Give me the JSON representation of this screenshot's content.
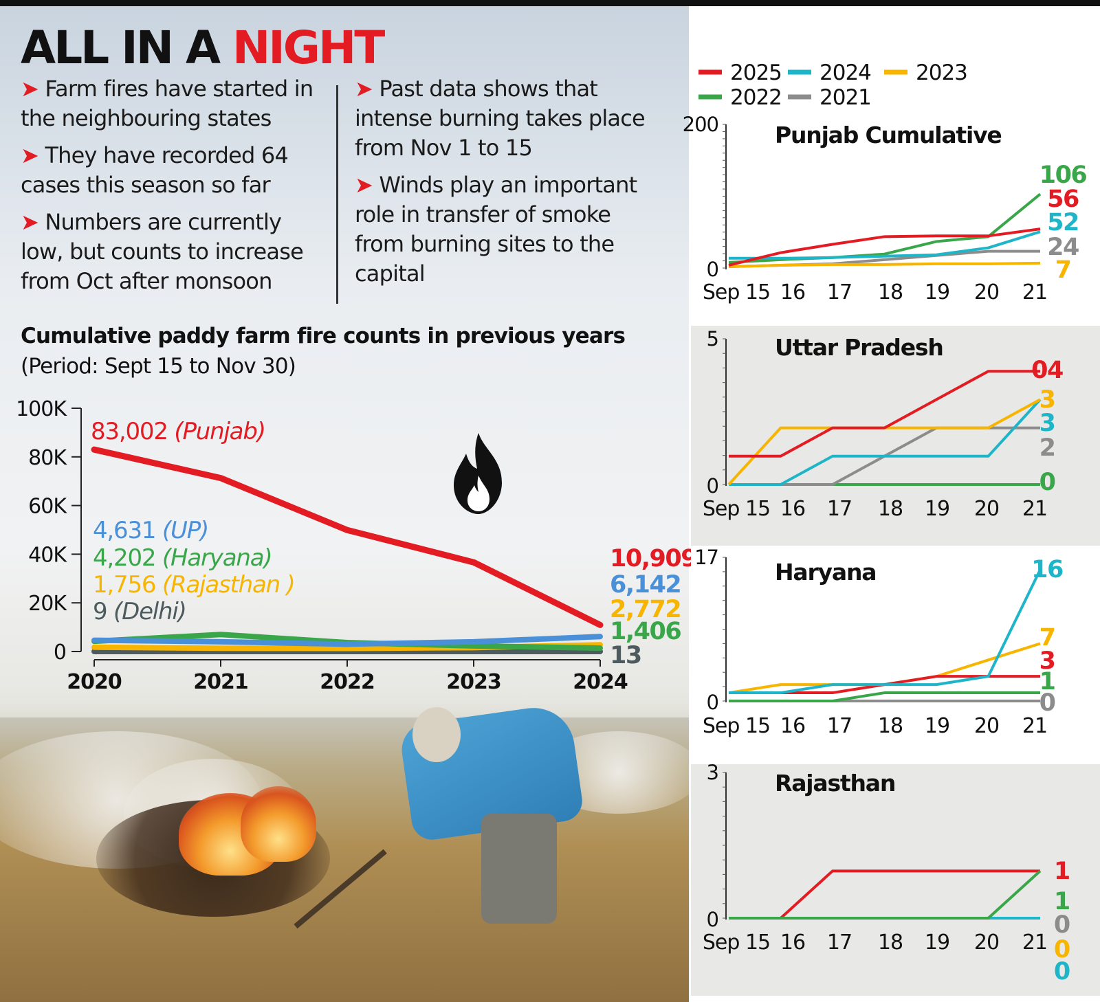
{
  "header": {
    "title_part1": "ALL IN A ",
    "title_part2": "NIGHT"
  },
  "bullets_left": [
    "Farm fires have started in the neighbouring states",
    "They have recorded 64 cases this season so far",
    "Numbers are currently low, but counts to increase from Oct after monsoon"
  ],
  "bullets_right": [
    "Past data shows that intense burning takes place from Nov 1 to 15",
    "Winds play an important role in transfer of smoke from burning sites to the capital"
  ],
  "colors": {
    "red": "#e31b23",
    "cyan": "#1fb5c9",
    "yellow": "#f7b500",
    "green": "#3aa64a",
    "gray": "#8c8c8c",
    "blue": "#4a90d9",
    "darkgray": "#4d5a5e"
  },
  "icons": {
    "fire": "fire-icon"
  },
  "chart_data": [
    {
      "type": "line",
      "title": "Cumulative paddy farm fire counts in previous years",
      "subtitle": "(Period: Sept 15 to Nov 30)",
      "x": [
        "2020",
        "2021",
        "2022",
        "2023",
        "2024"
      ],
      "y_ticks": [
        "0",
        "20K",
        "40K",
        "60K",
        "80K",
        "100K"
      ],
      "ylim": [
        0,
        100000
      ],
      "series": [
        {
          "name": "Punjab",
          "color": "#e31b23",
          "values": [
            83002,
            71304,
            49922,
            36663,
            10909
          ],
          "start_label": "83,002",
          "start_name": "(Punjab)",
          "end_label": "10,909"
        },
        {
          "name": "UP",
          "color": "#4a90d9",
          "values": [
            4631,
            4000,
            3017,
            3996,
            6142
          ],
          "start_label": "4,631",
          "start_name": "(UP)",
          "end_label": "6,142"
        },
        {
          "name": "Haryana",
          "color": "#3aa64a",
          "values": [
            4202,
            6987,
            3661,
            2303,
            1406
          ],
          "start_label": "4,202",
          "start_name": "(Haryana)",
          "end_label": "1,406"
        },
        {
          "name": "Rajasthan",
          "color": "#f7b500",
          "values": [
            1756,
            1350,
            1268,
            1605,
            2772
          ],
          "start_label": "1,756",
          "start_name": "(Rajasthan )",
          "end_label": "2,772"
        },
        {
          "name": "Delhi",
          "color": "#4d5a5e",
          "values": [
            9,
            4,
            10,
            8,
            13
          ],
          "start_label": "9",
          "start_name": "(Delhi)",
          "end_label": "13"
        }
      ]
    },
    {
      "type": "line",
      "legend": [
        {
          "label": "2025",
          "color": "#e31b23"
        },
        {
          "label": "2024",
          "color": "#1fb5c9"
        },
        {
          "label": "2023",
          "color": "#f7b500"
        },
        {
          "label": "2022",
          "color": "#3aa64a"
        },
        {
          "label": "2021",
          "color": "#8c8c8c"
        }
      ],
      "x": [
        "Sep 15",
        "16",
        "17",
        "18",
        "19",
        "20",
        "21"
      ],
      "panels": [
        {
          "title": "Punjab Cumulative",
          "ylim": [
            0,
            200
          ],
          "y_tick_labels": [
            "0",
            "200"
          ],
          "series": [
            {
              "name": "2022",
              "color": "#3aa64a",
              "values": [
                8,
                12,
                15,
                20,
                38,
                45,
                106
              ],
              "end_label": "106"
            },
            {
              "name": "2021",
              "color": "#8c8c8c",
              "values": [
                2,
                4,
                6,
                12,
                18,
                24,
                24
              ],
              "end_label": "24"
            },
            {
              "name": "2023",
              "color": "#f7b500",
              "values": [
                2,
                4,
                5,
                5,
                6,
                6,
                7
              ],
              "end_label": "7"
            },
            {
              "name": "2024",
              "color": "#1fb5c9",
              "values": [
                14,
                14,
                15,
                17,
                19,
                29,
                52
              ],
              "end_label": "52"
            },
            {
              "name": "2025",
              "color": "#e31b23",
              "values": [
                4,
                22,
                34,
                45,
                46,
                46,
                56
              ],
              "end_label": "56"
            }
          ]
        },
        {
          "title": "Uttar Pradesh",
          "ylim": [
            0,
            5
          ],
          "y_tick_labels": [
            "0",
            "5"
          ],
          "series": [
            {
              "name": "2022",
              "color": "#3aa64a",
              "values": [
                0,
                0,
                0,
                0,
                0,
                0,
                0
              ],
              "end_label": "0"
            },
            {
              "name": "2021",
              "color": "#8c8c8c",
              "values": [
                0,
                0,
                0,
                1,
                2,
                2,
                2
              ],
              "end_label": "2"
            },
            {
              "name": "2024",
              "color": "#1fb5c9",
              "values": [
                0,
                0,
                1,
                1,
                1,
                1,
                3
              ],
              "end_label": "3"
            },
            {
              "name": "2023",
              "color": "#f7b500",
              "values": [
                0,
                2,
                2,
                2,
                2,
                2,
                3
              ],
              "end_label": "3"
            },
            {
              "name": "2025",
              "color": "#e31b23",
              "values": [
                1,
                1,
                2,
                2,
                3,
                4,
                4
              ],
              "end_label": "04"
            }
          ]
        },
        {
          "title": "Haryana",
          "ylim": [
            0,
            17
          ],
          "y_tick_labels": [
            "0",
            "17"
          ],
          "series": [
            {
              "name": "2021",
              "color": "#8c8c8c",
              "values": [
                0,
                0,
                0,
                0,
                0,
                0,
                0
              ],
              "end_label": "0"
            },
            {
              "name": "2022",
              "color": "#3aa64a",
              "values": [
                0,
                0,
                0,
                1,
                1,
                1,
                1
              ],
              "end_label": "1"
            },
            {
              "name": "2023",
              "color": "#f7b500",
              "values": [
                1,
                2,
                2,
                2,
                3,
                5,
                7
              ],
              "end_label": "7"
            },
            {
              "name": "2025",
              "color": "#e31b23",
              "values": [
                1,
                1,
                1,
                2,
                3,
                3,
                3
              ],
              "end_label": "3"
            },
            {
              "name": "2024",
              "color": "#1fb5c9",
              "values": [
                1,
                1,
                2,
                2,
                2,
                3,
                16
              ],
              "end_label": "16"
            }
          ]
        },
        {
          "title": "Rajasthan",
          "ylim": [
            0,
            3
          ],
          "y_tick_labels": [
            "0",
            "3"
          ],
          "series": [
            {
              "name": "2024",
              "color": "#1fb5c9",
              "values": [
                0,
                0,
                0,
                0,
                0,
                0,
                0
              ],
              "end_label": "0"
            },
            {
              "name": "2025",
              "color": "#e31b23",
              "values": [
                0,
                0,
                1,
                1,
                1,
                1,
                1
              ],
              "end_label": "1"
            },
            {
              "name": "2022",
              "color": "#3aa64a",
              "values": [
                0,
                0,
                0,
                0,
                0,
                0,
                1
              ],
              "end_label": "1"
            }
          ],
          "end_labels_column": [
            {
              "text": "1",
              "color": "#e31b23"
            },
            {
              "text": "1",
              "color": "#3aa64a"
            },
            {
              "text": "0",
              "color": "#8c8c8c"
            },
            {
              "text": "0",
              "color": "#f7b500"
            },
            {
              "text": "0",
              "color": "#1fb5c9"
            }
          ]
        }
      ]
    }
  ]
}
